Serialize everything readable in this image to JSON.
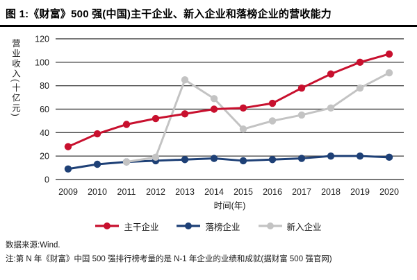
{
  "title": "图 1:《财富》500 强(中国)主干企业、新入企业和落榜企业的营收能力",
  "footer": {
    "source": "数据来源:Wind.",
    "note": "注:第 N 年《财富》中国 500 强排行榜考量的是 N-1 年企业的业绩和成就(据财富 500 强官网)"
  },
  "colors": {
    "main_series": "#C8102E",
    "dropped_series": "#1E4076",
    "new_series": "#C3C3C3",
    "gridline": "#4a4a4a",
    "text": "#1a1a1a"
  },
  "chart_data": {
    "type": "line",
    "title": "图 1:《财富》500 强(中国)主干企业、新入企业和落榜企业的营收能力",
    "xlabel": "时间(年)",
    "ylabel": "营业收入(十亿元)",
    "x": [
      2009,
      2010,
      2011,
      2012,
      2013,
      2014,
      2015,
      2016,
      2017,
      2018,
      2019,
      2020
    ],
    "ylim": [
      0,
      120
    ],
    "yticks": [
      0,
      20,
      40,
      60,
      80,
      100,
      120
    ],
    "grid": "horizontal",
    "legend_position": "bottom",
    "series": [
      {
        "name": "主干企业",
        "color": "#C8102E",
        "values": [
          28,
          39,
          47,
          52,
          56,
          60,
          61,
          65,
          78,
          90,
          100,
          107
        ]
      },
      {
        "name": "落榜企业",
        "color": "#1E4076",
        "values": [
          9,
          13,
          15,
          16,
          17,
          18,
          16,
          17,
          18,
          20,
          20,
          19
        ]
      },
      {
        "name": "新入企业",
        "color": "#C3C3C3",
        "values": [
          null,
          null,
          15,
          19,
          85,
          69,
          43,
          50,
          55,
          61,
          78,
          91
        ]
      }
    ]
  }
}
